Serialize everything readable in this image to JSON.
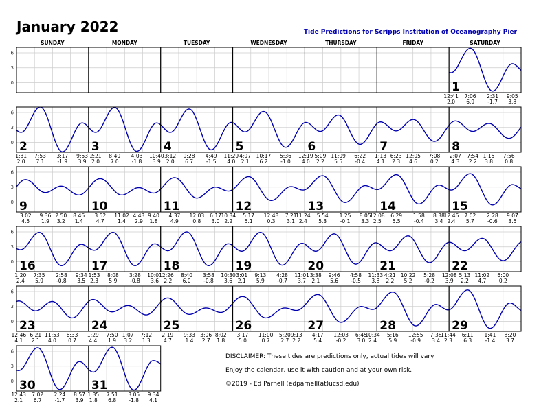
{
  "header": {
    "title": "January 2022",
    "subtitle": "Tide Predictions for Scripps Institution of Oceanography Pier"
  },
  "colors": {
    "curve": "#0000b0",
    "grid": "#cccccc",
    "border": "#000000",
    "subtitle": "#0000b0"
  },
  "disclaimer": [
    "DISCLAIMER: These tides are predictions only, actual tides will vary.",
    "Enjoy the calendar, use it with caution and at your own risk.",
    "©2019 - Ed Parnell (edparnell(at)ucsd.edu)"
  ],
  "chart_data": {
    "type": "line",
    "title": "Tide Predictions for Scripps Institution of Oceanography Pier",
    "weekdays": [
      "SUNDAY",
      "MONDAY",
      "TUESDAY",
      "WEDNESDAY",
      "THURSDAY",
      "FRIDAY",
      "SATURDAY"
    ],
    "y_ticks": [
      "6",
      "3",
      "0"
    ],
    "ylim": [
      -2,
      7.1
    ],
    "x_range_per_cell_hours": [
      0,
      24
    ],
    "grid": true,
    "days": [
      {
        "date": "1",
        "tides": [
          {
            "t": "12:41",
            "h": "2.0"
          },
          {
            "t": "7:06",
            "h": "6.9"
          },
          {
            "t": "2:31",
            "h": "-1.7"
          },
          {
            "t": "9:05",
            "h": "3.8"
          }
        ]
      },
      {
        "date": "2",
        "tides": [
          {
            "t": "1:31",
            "h": "2.0"
          },
          {
            "t": "7:53",
            "h": "7.1"
          },
          {
            "t": "3:17",
            "h": "-1.9"
          },
          {
            "t": "9:53",
            "h": "3.9"
          }
        ]
      },
      {
        "date": "3",
        "tides": [
          {
            "t": "2:21",
            "h": "2.0"
          },
          {
            "t": "8:40",
            "h": "7.0"
          },
          {
            "t": "4:03",
            "h": "-1.8"
          },
          {
            "t": "10:40",
            "h": "3.9"
          }
        ]
      },
      {
        "date": "4",
        "tides": [
          {
            "t": "3:12",
            "h": "2.0"
          },
          {
            "t": "9:28",
            "h": "6.7"
          },
          {
            "t": "4:49",
            "h": "-1.5"
          },
          {
            "t": "11:29",
            "h": "4.0"
          }
        ]
      },
      {
        "date": "5",
        "tides": [
          {
            "t": "4:07",
            "h": "2.1"
          },
          {
            "t": "10:17",
            "h": "6.2"
          },
          {
            "t": "5:36",
            "h": "-1.0"
          }
        ]
      },
      {
        "date": "6",
        "tides": [
          {
            "t": "12:19",
            "h": "4.0"
          },
          {
            "t": "5:09",
            "h": "2.2"
          },
          {
            "t": "11:09",
            "h": "5.5"
          },
          {
            "t": "6:22",
            "h": "-0.4"
          }
        ]
      },
      {
        "date": "7",
        "tides": [
          {
            "t": "1:13",
            "h": "4.1"
          },
          {
            "t": "6:23",
            "h": "2.3"
          },
          {
            "t": "12:05",
            "h": "4.6"
          },
          {
            "t": "7:08",
            "h": "0.2"
          }
        ]
      },
      {
        "date": "8",
        "tides": [
          {
            "t": "2:07",
            "h": "4.3"
          },
          {
            "t": "7:54",
            "h": "2.2"
          },
          {
            "t": "1:15",
            "h": "3.8"
          },
          {
            "t": "7:56",
            "h": "0.8"
          }
        ]
      },
      {
        "date": "9",
        "tides": [
          {
            "t": "3:02",
            "h": "4.5"
          },
          {
            "t": "9:36",
            "h": "1.9"
          },
          {
            "t": "2:50",
            "h": "3.2"
          },
          {
            "t": "8:46",
            "h": "1.4"
          }
        ]
      },
      {
        "date": "10",
        "tides": [
          {
            "t": "3:52",
            "h": "4.7"
          },
          {
            "t": "11:02",
            "h": "1.4"
          },
          {
            "t": "4:43",
            "h": "2.9"
          },
          {
            "t": "9:40",
            "h": "1.8"
          }
        ]
      },
      {
        "date": "11",
        "tides": [
          {
            "t": "4:37",
            "h": "4.9"
          },
          {
            "t": "12:03",
            "h": "0.8"
          },
          {
            "t": "6:17",
            "h": "3.0"
          },
          {
            "t": "10:34",
            "h": "2.2"
          }
        ]
      },
      {
        "date": "12",
        "tides": [
          {
            "t": "5:17",
            "h": "5.1"
          },
          {
            "t": "12:48",
            "h": "0.3"
          },
          {
            "t": "7:21",
            "h": "3.1"
          },
          {
            "t": "11:24",
            "h": "2.4"
          }
        ]
      },
      {
        "date": "13",
        "tides": [
          {
            "t": "5:54",
            "h": "5.3"
          },
          {
            "t": "1:25",
            "h": "-0.1"
          },
          {
            "t": "8:05",
            "h": "3.3"
          }
        ]
      },
      {
        "date": "14",
        "tides": [
          {
            "t": "12:08",
            "h": "2.5"
          },
          {
            "t": "6:29",
            "h": "5.5"
          },
          {
            "t": "1:58",
            "h": "-0.4"
          },
          {
            "t": "8:38",
            "h": "3.4"
          }
        ]
      },
      {
        "date": "15",
        "tides": [
          {
            "t": "12:46",
            "h": "2.4"
          },
          {
            "t": "7:02",
            "h": "5.7"
          },
          {
            "t": "2:28",
            "h": "-0.6"
          },
          {
            "t": "9:07",
            "h": "3.5"
          }
        ]
      },
      {
        "date": "16",
        "tides": [
          {
            "t": "1:20",
            "h": "2.4"
          },
          {
            "t": "7:35",
            "h": "5.9"
          },
          {
            "t": "2:58",
            "h": "-0.8"
          },
          {
            "t": "9:34",
            "h": "3.5"
          }
        ]
      },
      {
        "date": "17",
        "tides": [
          {
            "t": "1:53",
            "h": "2.3"
          },
          {
            "t": "8:08",
            "h": "5.9"
          },
          {
            "t": "3:28",
            "h": "-0.8"
          },
          {
            "t": "10:01",
            "h": "3.6"
          }
        ]
      },
      {
        "date": "18",
        "tides": [
          {
            "t": "2:26",
            "h": "2.2"
          },
          {
            "t": "8:40",
            "h": "6.0"
          },
          {
            "t": "3:58",
            "h": "-0.8"
          },
          {
            "t": "10:30",
            "h": "3.6"
          }
        ]
      },
      {
        "date": "19",
        "tides": [
          {
            "t": "3:01",
            "h": "2.1"
          },
          {
            "t": "9:13",
            "h": "5.9"
          },
          {
            "t": "4:28",
            "h": "-0.7"
          },
          {
            "t": "11:01",
            "h": "3.7"
          }
        ]
      },
      {
        "date": "20",
        "tides": [
          {
            "t": "3:38",
            "h": "2.1"
          },
          {
            "t": "9:46",
            "h": "5.6"
          },
          {
            "t": "4:58",
            "h": "-0.5"
          },
          {
            "t": "11:33",
            "h": "3.8"
          }
        ]
      },
      {
        "date": "21",
        "tides": [
          {
            "t": "4:21",
            "h": "2.2"
          },
          {
            "t": "10:22",
            "h": "5.2"
          },
          {
            "t": "5:28",
            "h": "-0.2"
          }
        ]
      },
      {
        "date": "22",
        "tides": [
          {
            "t": "12:08",
            "h": "3.9"
          },
          {
            "t": "5:13",
            "h": "2.2"
          },
          {
            "t": "11:02",
            "h": "4.7"
          },
          {
            "t": "6:00",
            "h": "0.2"
          }
        ]
      },
      {
        "date": "23",
        "tides": [
          {
            "t": "12:46",
            "h": "4.1"
          },
          {
            "t": "6:21",
            "h": "2.1"
          },
          {
            "t": "11:53",
            "h": "4.0"
          },
          {
            "t": "6:33",
            "h": "0.7"
          }
        ]
      },
      {
        "date": "24",
        "tides": [
          {
            "t": "1:29",
            "h": "4.4"
          },
          {
            "t": "7:50",
            "h": "1.9"
          },
          {
            "t": "1:07",
            "h": "3.2"
          },
          {
            "t": "7:12",
            "h": "1.3"
          }
        ]
      },
      {
        "date": "25",
        "tides": [
          {
            "t": "2:19",
            "h": "4.7"
          },
          {
            "t": "9:33",
            "h": "1.4"
          },
          {
            "t": "3:06",
            "h": "2.7"
          },
          {
            "t": "8:02",
            "h": "1.8"
          }
        ]
      },
      {
        "date": "26",
        "tides": [
          {
            "t": "3:17",
            "h": "5.0"
          },
          {
            "t": "11:00",
            "h": "0.7"
          },
          {
            "t": "5:20",
            "h": "2.7"
          },
          {
            "t": "9:13",
            "h": "2.2"
          }
        ]
      },
      {
        "date": "27",
        "tides": [
          {
            "t": "4:17",
            "h": "5.4"
          },
          {
            "t": "12:03",
            "h": "-0.2"
          },
          {
            "t": "6:45",
            "h": "3.0"
          },
          {
            "t": "10:34",
            "h": "2.4"
          }
        ]
      },
      {
        "date": "28",
        "tides": [
          {
            "t": "5:16",
            "h": "5.9"
          },
          {
            "t": "12:55",
            "h": "-0.9"
          },
          {
            "t": "7:38",
            "h": "3.4"
          },
          {
            "t": "11:44",
            "h": "2.3"
          }
        ]
      },
      {
        "date": "29",
        "tides": [
          {
            "t": "6:11",
            "h": "6.3"
          },
          {
            "t": "1:41",
            "h": "-1.4"
          },
          {
            "t": "8:20",
            "h": "3.7"
          }
        ]
      },
      {
        "date": "30",
        "tides": [
          {
            "t": "12:43",
            "h": "2.1"
          },
          {
            "t": "7:02",
            "h": "6.7"
          },
          {
            "t": "2:24",
            "h": "-1.7"
          },
          {
            "t": "8:57",
            "h": "3.9"
          }
        ]
      },
      {
        "date": "31",
        "tides": [
          {
            "t": "1:35",
            "h": "1.8"
          },
          {
            "t": "7:51",
            "h": "6.8"
          },
          {
            "t": "3:05",
            "h": "-1.8"
          },
          {
            "t": "9:34",
            "h": "4.1"
          }
        ]
      }
    ]
  }
}
